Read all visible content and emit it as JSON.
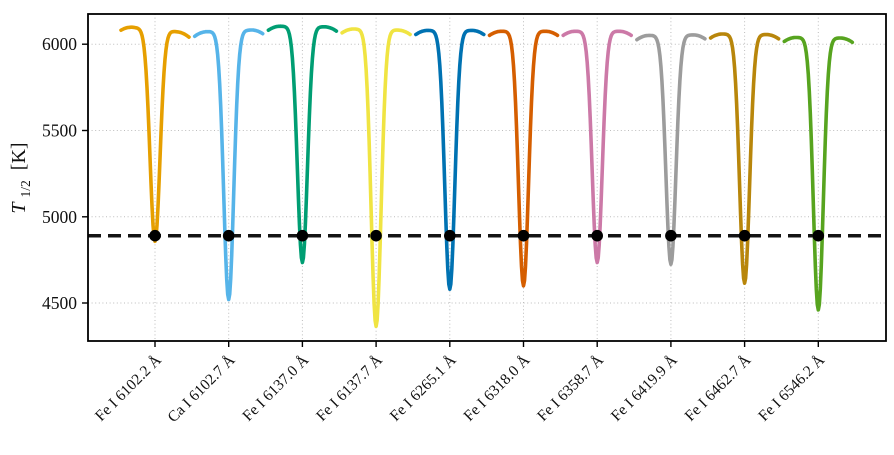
{
  "chart_data": {
    "type": "line",
    "title": "",
    "xlabel": "",
    "ylabel": "T_1/2 [K]",
    "ylabel_parts": {
      "symbol": "T",
      "subscript": "1/2",
      "unit": "[K]"
    },
    "ylim": [
      4280,
      6175
    ],
    "yticks": [
      4500,
      5000,
      5500,
      6000
    ],
    "grid": "dotted",
    "legend": "none",
    "threshold_line": {
      "value": 4890,
      "style": "dashed",
      "color": "#141414",
      "description": "half-depth temperature level"
    },
    "marker_points": {
      "shape": "filled-circle",
      "color": "#000000",
      "value": 4890,
      "at": "every spectral-line center"
    },
    "categories": [
      "Fe I 6102.2 Å",
      "Ca I 6102.7 Å",
      "Fe I 6137.0 Å",
      "Fe I 6137.7 Å",
      "Fe I 6265.1 Å",
      "Fe I 6318.0 Å",
      "Fe I 6358.7 Å",
      "Fe I 6419.9 Å",
      "Fe I 6462.7 Å",
      "Fe I 6546.2 Å"
    ],
    "series": [
      {
        "label": "Fe I 6102.2 Å",
        "color": "#E69F00",
        "continuum_left_K": 6105,
        "continuum_right_K": 6065,
        "t_min_K": 4858
      },
      {
        "label": "Ca I 6102.7 Å",
        "color": "#56B4E9",
        "continuum_left_K": 6070,
        "continuum_right_K": 6085,
        "t_min_K": 4520
      },
      {
        "label": "Fe I 6137.0 Å",
        "color": "#009E73",
        "continuum_left_K": 6105,
        "continuum_right_K": 6100,
        "t_min_K": 4735
      },
      {
        "label": "Fe I 6137.7 Å",
        "color": "#F0E442",
        "continuum_left_K": 6090,
        "continuum_right_K": 6080,
        "t_min_K": 4365
      },
      {
        "label": "Fe I 6265.1 Å",
        "color": "#0072B2",
        "continuum_left_K": 6080,
        "continuum_right_K": 6080,
        "t_min_K": 4580
      },
      {
        "label": "Fe I 6318.0 Å",
        "color": "#D55E00",
        "continuum_left_K": 6075,
        "continuum_right_K": 6075,
        "t_min_K": 4600
      },
      {
        "label": "Fe I 6358.7 Å",
        "color": "#CC79A7",
        "continuum_left_K": 6075,
        "continuum_right_K": 6075,
        "t_min_K": 4735
      },
      {
        "label": "Fe I 6419.9 Å",
        "color": "#9C9C9C",
        "continuum_left_K": 6050,
        "continuum_right_K": 6055,
        "t_min_K": 4725
      },
      {
        "label": "Fe I 6462.7 Å",
        "color": "#B8860B",
        "continuum_left_K": 6060,
        "continuum_right_K": 6055,
        "t_min_K": 4615
      },
      {
        "label": "Fe I 6546.2 Å",
        "color": "#57A41F",
        "continuum_left_K": 6040,
        "continuum_right_K": 6035,
        "t_min_K": 4460
      }
    ]
  }
}
